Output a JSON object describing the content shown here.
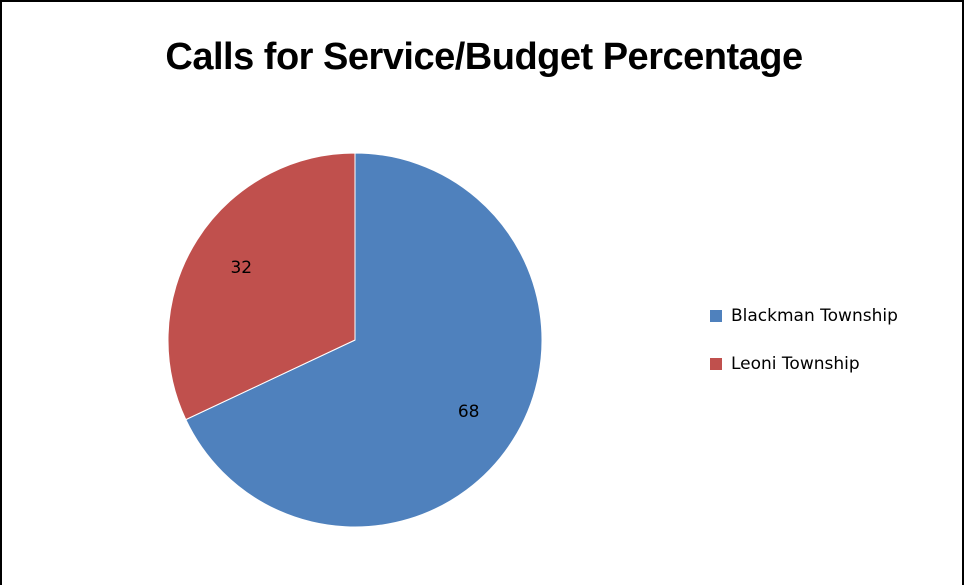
{
  "chart_data": {
    "type": "pie",
    "title": "Calls for Service/Budget Percentage",
    "categories": [
      "Blackman Township",
      "Leoni Township"
    ],
    "values": [
      68,
      32
    ],
    "data_labels": [
      "68",
      "32"
    ],
    "colors": [
      "#4f81bd",
      "#c0504d"
    ],
    "legend_position": "right"
  }
}
